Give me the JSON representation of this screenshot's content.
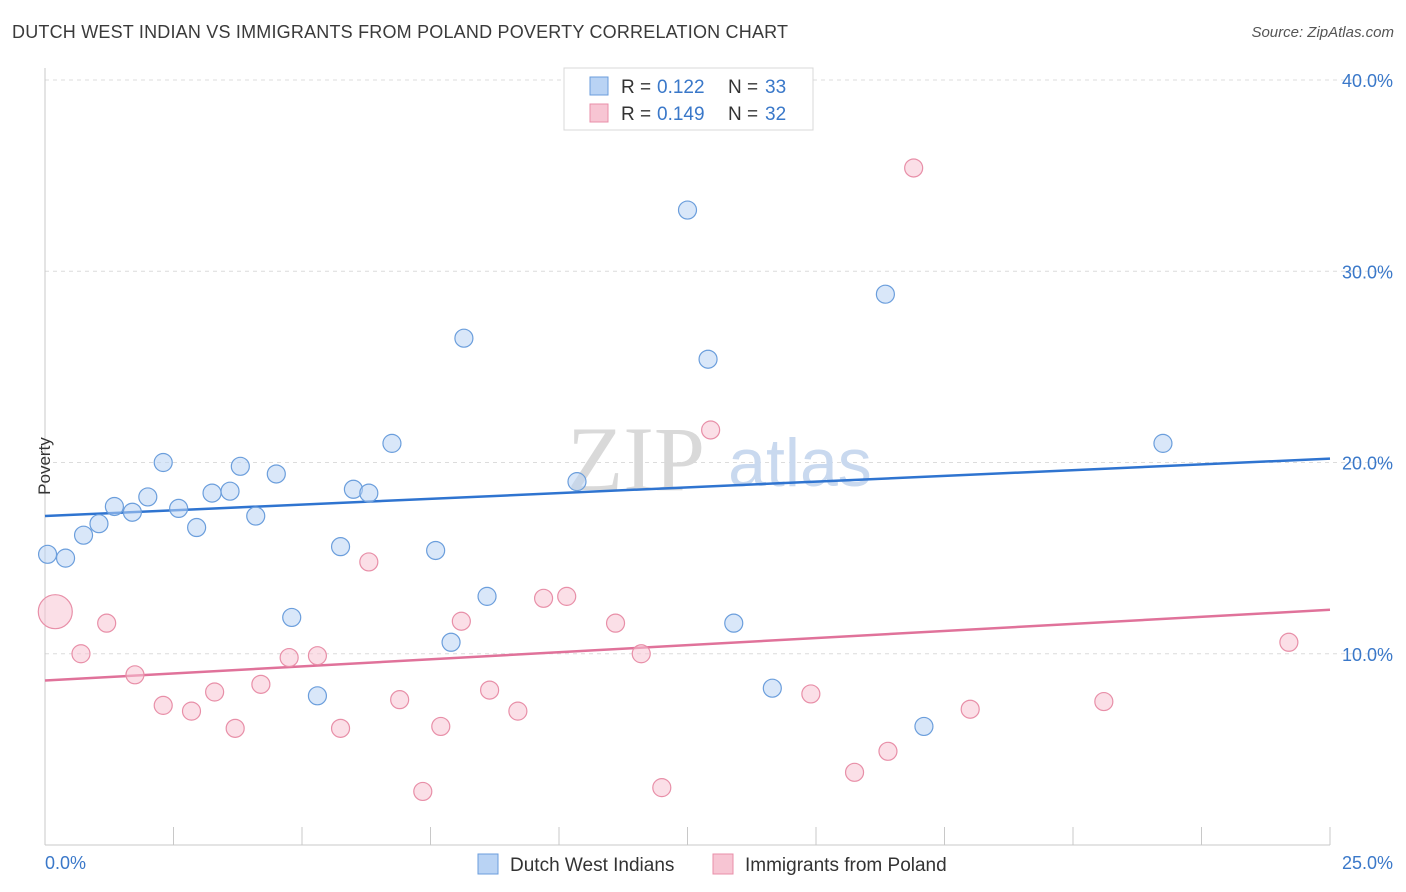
{
  "header": {
    "title": "DUTCH WEST INDIAN VS IMMIGRANTS FROM POLAND POVERTY CORRELATION CHART",
    "source": "Source: ZipAtlas.com"
  },
  "watermark": {
    "zip": "ZIP",
    "atlas": "atlas"
  },
  "chart_data": {
    "type": "scatter",
    "title": "DUTCH WEST INDIAN VS IMMIGRANTS FROM POLAND POVERTY CORRELATION CHART",
    "xlabel": "",
    "ylabel": "Poverty",
    "xlim": [
      0,
      25
    ],
    "ylim": [
      0,
      40
    ],
    "x_tick_labels": [
      "0.0%",
      "25.0%"
    ],
    "y_ticks": [
      10,
      20,
      30,
      40
    ],
    "y_tick_labels": [
      "10.0%",
      "20.0%",
      "30.0%",
      "40.0%"
    ],
    "grid": true,
    "legend_placement": "top-center",
    "series": [
      {
        "name": "Dutch West Indians",
        "color": "#6b9edc",
        "fill": "#b9d3f4",
        "line_color": "#2f74d0",
        "R": "0.122",
        "N": "33",
        "trend": {
          "x": [
            0,
            25
          ],
          "y": [
            17.2,
            20.2
          ]
        },
        "points": [
          {
            "x": 0.05,
            "y": 15.2
          },
          {
            "x": 0.4,
            "y": 15.0
          },
          {
            "x": 0.75,
            "y": 16.2
          },
          {
            "x": 1.05,
            "y": 16.8
          },
          {
            "x": 1.35,
            "y": 17.7
          },
          {
            "x": 1.7,
            "y": 17.4
          },
          {
            "x": 2.0,
            "y": 18.2
          },
          {
            "x": 2.3,
            "y": 20.0
          },
          {
            "x": 2.6,
            "y": 17.6
          },
          {
            "x": 2.95,
            "y": 16.6
          },
          {
            "x": 3.25,
            "y": 18.4
          },
          {
            "x": 3.6,
            "y": 18.5
          },
          {
            "x": 3.8,
            "y": 19.8
          },
          {
            "x": 4.1,
            "y": 17.2
          },
          {
            "x": 4.5,
            "y": 19.4
          },
          {
            "x": 4.8,
            "y": 11.9
          },
          {
            "x": 5.3,
            "y": 7.8
          },
          {
            "x": 5.75,
            "y": 15.6
          },
          {
            "x": 6.0,
            "y": 18.6
          },
          {
            "x": 6.3,
            "y": 18.4
          },
          {
            "x": 6.75,
            "y": 21.0
          },
          {
            "x": 7.6,
            "y": 15.4
          },
          {
            "x": 7.9,
            "y": 10.6
          },
          {
            "x": 8.15,
            "y": 26.5
          },
          {
            "x": 8.6,
            "y": 13.0
          },
          {
            "x": 10.35,
            "y": 19.0
          },
          {
            "x": 12.5,
            "y": 33.2
          },
          {
            "x": 12.9,
            "y": 25.4
          },
          {
            "x": 13.4,
            "y": 11.6
          },
          {
            "x": 14.15,
            "y": 8.2
          },
          {
            "x": 16.35,
            "y": 28.8
          },
          {
            "x": 17.1,
            "y": 6.2
          },
          {
            "x": 21.75,
            "y": 21.0
          }
        ]
      },
      {
        "name": "Immigrants from Poland",
        "color": "#e88fa8",
        "fill": "#f7c5d3",
        "line_color": "#e0729a",
        "R": "0.149",
        "N": "32",
        "trend": {
          "x": [
            0,
            25
          ],
          "y": [
            8.6,
            12.3
          ]
        },
        "points": [
          {
            "x": 0.2,
            "y": 12.2,
            "big": true
          },
          {
            "x": 0.7,
            "y": 10.0
          },
          {
            "x": 1.2,
            "y": 11.6
          },
          {
            "x": 1.75,
            "y": 8.9
          },
          {
            "x": 2.3,
            "y": 7.3
          },
          {
            "x": 2.85,
            "y": 7.0
          },
          {
            "x": 3.3,
            "y": 8.0
          },
          {
            "x": 3.7,
            "y": 6.1
          },
          {
            "x": 4.2,
            "y": 8.4
          },
          {
            "x": 4.75,
            "y": 9.8
          },
          {
            "x": 5.3,
            "y": 9.9
          },
          {
            "x": 5.75,
            "y": 6.1
          },
          {
            "x": 6.3,
            "y": 14.8
          },
          {
            "x": 6.9,
            "y": 7.6
          },
          {
            "x": 7.35,
            "y": 2.8
          },
          {
            "x": 7.7,
            "y": 6.2
          },
          {
            "x": 8.1,
            "y": 11.7
          },
          {
            "x": 8.65,
            "y": 8.1
          },
          {
            "x": 9.2,
            "y": 7.0
          },
          {
            "x": 9.7,
            "y": 12.9
          },
          {
            "x": 10.15,
            "y": 13.0
          },
          {
            "x": 11.1,
            "y": 11.6
          },
          {
            "x": 11.6,
            "y": 10.0
          },
          {
            "x": 12.0,
            "y": 3.0
          },
          {
            "x": 12.95,
            "y": 21.7
          },
          {
            "x": 14.9,
            "y": 7.9
          },
          {
            "x": 15.75,
            "y": 3.8
          },
          {
            "x": 16.4,
            "y": 4.9
          },
          {
            "x": 16.9,
            "y": 35.4
          },
          {
            "x": 18.0,
            "y": 7.1
          },
          {
            "x": 20.6,
            "y": 7.5
          },
          {
            "x": 24.2,
            "y": 10.6
          }
        ]
      }
    ]
  }
}
